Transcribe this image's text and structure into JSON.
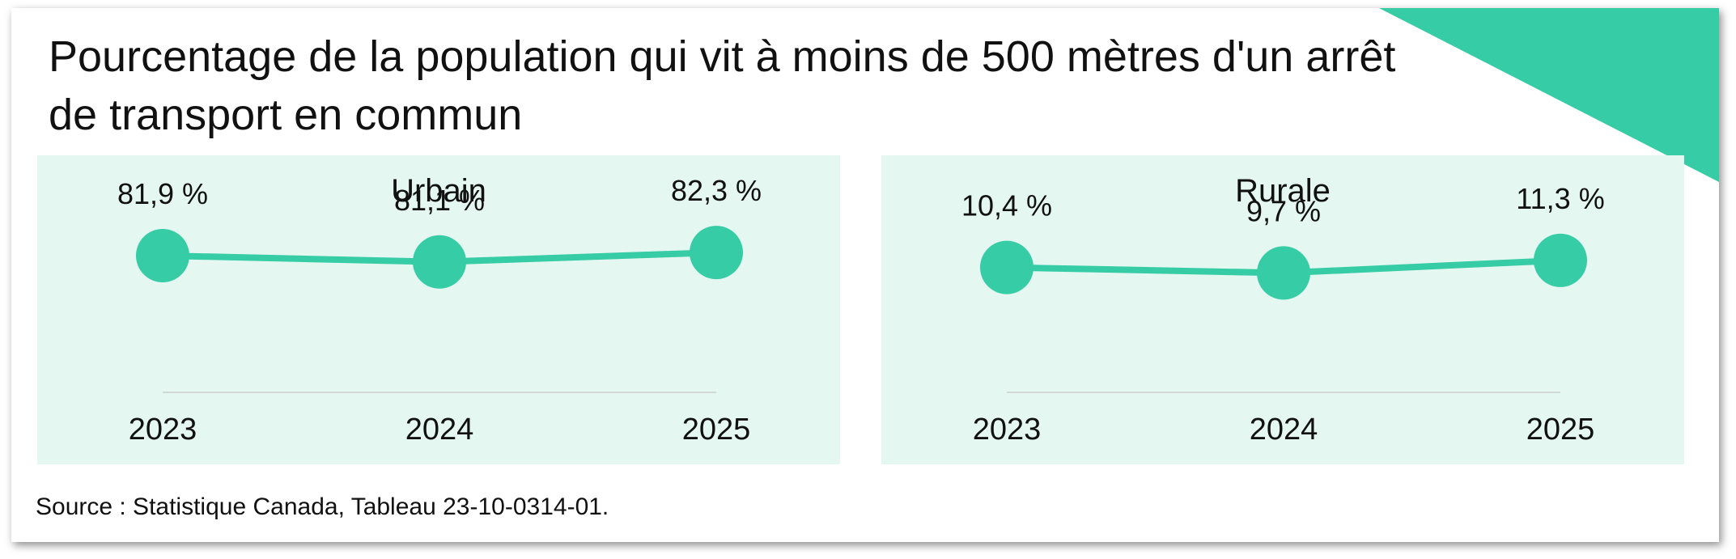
{
  "title": "Pourcentage de la population qui vit à moins de 500 mètres d'un arrêt de transport en commun",
  "source": "Source : Statistique Canada, Tableau 23-10-0314-01.",
  "accent_color": "#36cca5",
  "panel_color": "#e4f7f1",
  "chart_data": [
    {
      "type": "line",
      "title": "Urbain",
      "categories": [
        "2023",
        "2024",
        "2025"
      ],
      "values": [
        81.9,
        81.1,
        82.3
      ],
      "value_labels": [
        "81,9 %",
        "81,1 %",
        "82,3 %"
      ],
      "ylim": [
        70,
        90
      ],
      "grid": false
    },
    {
      "type": "line",
      "title": "Rurale",
      "categories": [
        "2023",
        "2024",
        "2025"
      ],
      "values": [
        10.4,
        9.7,
        11.3
      ],
      "value_labels": [
        "10,4 %",
        "9,7 %",
        "11,3 %"
      ],
      "ylim": [
        0,
        20
      ],
      "grid": false
    }
  ]
}
